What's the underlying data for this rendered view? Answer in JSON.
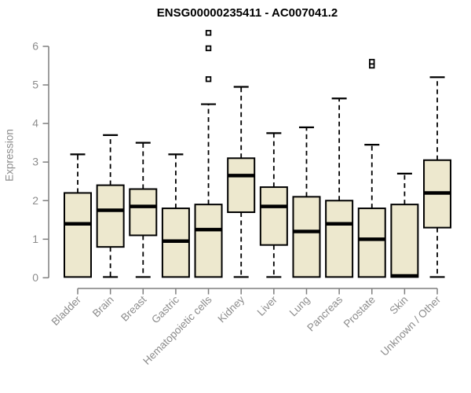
{
  "chart": {
    "title": "ENSG00000235411 - AC007041.2",
    "ylabel": "Expression"
  },
  "chart_data": {
    "type": "boxplot",
    "title": "ENSG00000235411 - AC007041.2",
    "xlabel": "",
    "ylabel": "Expression",
    "ylim": [
      0,
      6.45
    ],
    "yticks": [
      0,
      1,
      2,
      3,
      4,
      5,
      6
    ],
    "grid": false,
    "legend": null,
    "categories": [
      "Bladder",
      "Brain",
      "Breast",
      "Gastric",
      "Hematopoietic cells",
      "Kidney",
      "Liver",
      "Lung",
      "Pancreas",
      "Prostate",
      "Skin",
      "Unknown / Other"
    ],
    "series": [
      {
        "name": "Bladder",
        "whisker_low": 0,
        "q1": 0.02,
        "median": 1.4,
        "q3": 2.2,
        "whisker_high": 3.2,
        "outliers": []
      },
      {
        "name": "Brain",
        "whisker_low": 0.02,
        "q1": 0.8,
        "median": 1.75,
        "q3": 2.4,
        "whisker_high": 3.7,
        "outliers": []
      },
      {
        "name": "Breast",
        "whisker_low": 0.02,
        "q1": 1.1,
        "median": 1.85,
        "q3": 2.3,
        "whisker_high": 3.5,
        "outliers": []
      },
      {
        "name": "Gastric",
        "whisker_low": 0,
        "q1": 0.02,
        "median": 0.95,
        "q3": 1.8,
        "whisker_high": 3.2,
        "outliers": []
      },
      {
        "name": "Hematopoietic cells",
        "whisker_low": 0,
        "q1": 0.02,
        "median": 1.25,
        "q3": 1.9,
        "whisker_high": 4.5,
        "outliers": [
          5.15,
          5.95,
          6.35
        ]
      },
      {
        "name": "Kidney",
        "whisker_low": 0.02,
        "q1": 1.7,
        "median": 2.65,
        "q3": 3.1,
        "whisker_high": 4.95,
        "outliers": []
      },
      {
        "name": "Liver",
        "whisker_low": 0.02,
        "q1": 0.85,
        "median": 1.85,
        "q3": 2.35,
        "whisker_high": 3.75,
        "outliers": []
      },
      {
        "name": "Lung",
        "whisker_low": 0,
        "q1": 0.02,
        "median": 1.2,
        "q3": 2.1,
        "whisker_high": 3.9,
        "outliers": []
      },
      {
        "name": "Pancreas",
        "whisker_low": 0,
        "q1": 0.02,
        "median": 1.4,
        "q3": 2.0,
        "whisker_high": 4.65,
        "outliers": []
      },
      {
        "name": "Prostate",
        "whisker_low": 0,
        "q1": 0.02,
        "median": 1.0,
        "q3": 1.8,
        "whisker_high": 3.45,
        "outliers": [
          5.5,
          5.6
        ]
      },
      {
        "name": "Skin",
        "whisker_low": 0,
        "q1": 0.02,
        "median": 0.05,
        "q3": 1.9,
        "whisker_high": 2.7,
        "outliers": []
      },
      {
        "name": "Unknown / Other",
        "whisker_low": 0.02,
        "q1": 1.3,
        "median": 2.2,
        "q3": 3.05,
        "whisker_high": 5.2,
        "outliers": []
      }
    ],
    "colors": {
      "box_fill": "#EDE8CE",
      "box_border": "#000000",
      "median": "#000000",
      "whisker": "#000000",
      "outlier": "#000000",
      "axis": "#7f7f7f",
      "tick_labels": "#8c8c8c",
      "title": "#000000",
      "background": "#ffffff"
    }
  }
}
